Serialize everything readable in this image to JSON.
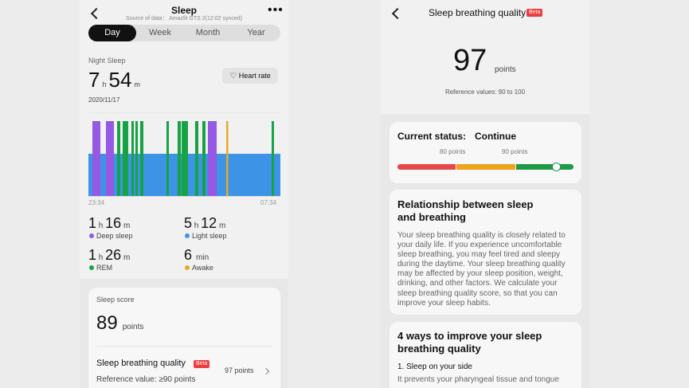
{
  "left": {
    "header": {
      "title": "Sleep",
      "source": "Source of data： Amazfit GTS 2(12:02 synced)"
    },
    "tabs": [
      "Day",
      "Week",
      "Month",
      "Year"
    ],
    "active_tab": 0,
    "night_sleep_label": "Night Sleep",
    "duration": {
      "hours": "7",
      "h_unit": "h",
      "minutes": "54",
      "m_unit": "m"
    },
    "heart_rate_button": "Heart rate",
    "date": "2020/11/17",
    "chart_start": "23:34",
    "chart_end": "07:34",
    "stats": {
      "deep": {
        "h": "1",
        "m": "16",
        "label": "Deep sleep"
      },
      "light": {
        "h": "5",
        "m": "12",
        "label": "Light sleep"
      },
      "rem": {
        "h": "1",
        "m": "26",
        "label": "REM"
      },
      "awake": {
        "v": "6",
        "unit": "min",
        "label": "Awake"
      }
    },
    "score": {
      "label": "Sleep score",
      "value": "89",
      "unit": "points"
    },
    "breathing_row": {
      "title": "Sleep breathing quality",
      "badge": "Beta",
      "value": "97 points",
      "reference": "Reference value: ≥90 points"
    },
    "colors": {
      "light": "#3d93e6",
      "deep": "#9559e3",
      "rem": "#17a345",
      "awake": "#e8a82a"
    }
  },
  "right": {
    "header": {
      "title": "Sleep breathing quality",
      "badge": "Beta"
    },
    "score": {
      "value": "97",
      "unit": "points",
      "reference": "Reference values: 90 to 100"
    },
    "status": {
      "label": "Current status:",
      "value": "Continue",
      "mark_low": "80 points",
      "mark_high": "90 points",
      "quality": 0.97
    },
    "relationship": {
      "title_lines": [
        "Relationship between sleep",
        "and breathing"
      ],
      "body_lines": [
        "Your sleep breathing quality is closely related to",
        "your daily life. If you experience uncomfortable",
        "sleep breathing, you may feel tired and sleepy",
        "during the daytime. Your sleep breathing quality",
        "may be affected by your sleep position, weight,",
        "drinking, and other factors. We calculate your",
        "sleep breathing quality score, so that you can",
        "improve your sleep habits."
      ]
    },
    "tips": {
      "title_lines": [
        "4 ways to improve your sleep",
        "breathing quality"
      ],
      "item1_title": "1. Sleep on your side",
      "item1_body": "It prevents your pharyngeal tissue and tongue"
    }
  }
}
